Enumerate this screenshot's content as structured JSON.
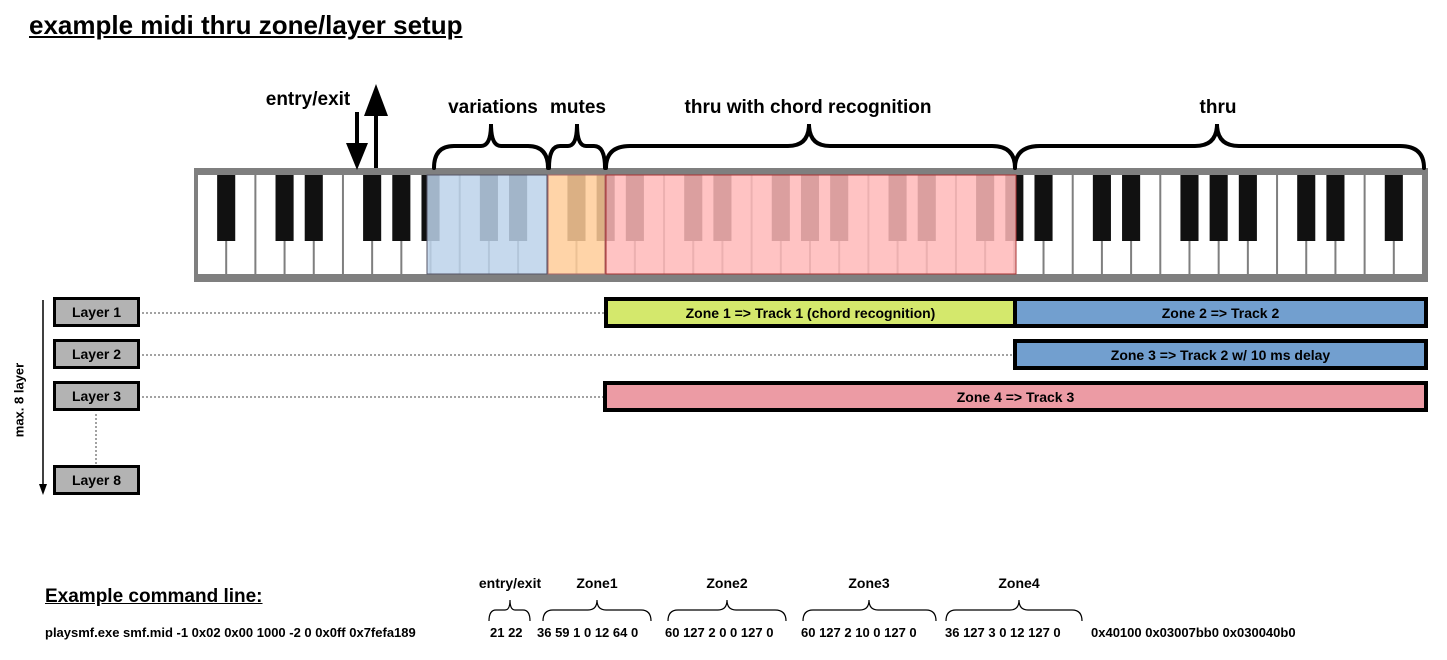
{
  "title": "example midi thru zone/layer setup",
  "keyboard": {
    "entry_exit_label": "entry/exit",
    "region_labels": {
      "variations": "variations",
      "mutes": "mutes",
      "chord": "thru with chord recognition",
      "thru": "thru"
    },
    "colors": {
      "variations": "#bcd2ea",
      "mutes": "#ffcc99",
      "chord": "#ffb8b8"
    }
  },
  "side_label": "max. 8 layer",
  "layers": [
    "Layer 1",
    "Layer 2",
    "Layer 3",
    "Layer 8"
  ],
  "zones": [
    {
      "label": "Zone 1 => Track 1 (chord recognition)",
      "color": "#d4e86c"
    },
    {
      "label": "Zone 2 => Track 2",
      "color": "#729fcf"
    },
    {
      "label": "Zone 3 => Track 2 w/ 10 ms delay",
      "color": "#729fcf"
    },
    {
      "label": "Zone 4 => Track 3",
      "color": "#ec9ba4"
    }
  ],
  "command": {
    "heading": "Example command line:",
    "prefix": "playsmf.exe smf.mid -1 0x02 0x00 1000 -2 0 0x0ff 0x7fefa189",
    "segments": [
      {
        "label": "entry/exit",
        "text": "21 22"
      },
      {
        "label": "Zone1",
        "text": "36 59 1 0 12 64 0"
      },
      {
        "label": "Zone2",
        "text": "60 127 2 0 0 127 0"
      },
      {
        "label": "Zone3",
        "text": "60 127 2 10 0 127 0"
      },
      {
        "label": "Zone4",
        "text": "36 127 3 0 12 127 0"
      }
    ],
    "suffix": "0x40100 0x03007bb0 0x030040b0"
  }
}
